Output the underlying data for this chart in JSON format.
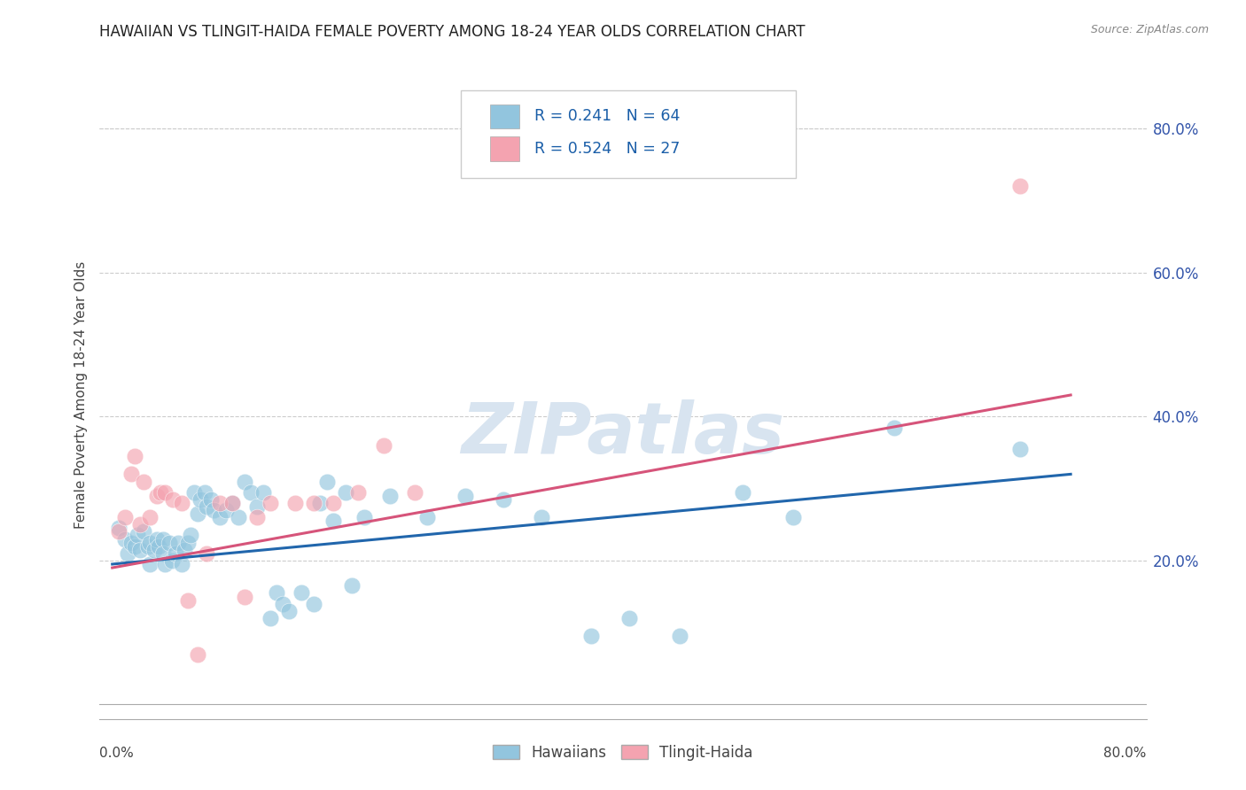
{
  "title": "HAWAIIAN VS TLINGIT-HAIDA FEMALE POVERTY AMONG 18-24 YEAR OLDS CORRELATION CHART",
  "source": "Source: ZipAtlas.com",
  "ylabel": "Female Poverty Among 18-24 Year Olds",
  "ytick_labels": [
    "20.0%",
    "40.0%",
    "60.0%",
    "80.0%"
  ],
  "ytick_values": [
    0.2,
    0.4,
    0.6,
    0.8
  ],
  "xlim": [
    -0.01,
    0.82
  ],
  "ylim": [
    -0.02,
    0.88
  ],
  "hawaiian_R": "0.241",
  "hawaiian_N": "64",
  "tlingit_R": "0.524",
  "tlingit_N": "27",
  "blue_color": "#92c5de",
  "pink_color": "#f4a3b0",
  "blue_line_color": "#2166ac",
  "pink_line_color": "#d6547a",
  "watermark": "ZIPatlas",
  "watermark_color": "#d8e4f0",
  "background_color": "#ffffff",
  "grid_color": "#cccccc",
  "hawaiian_x": [
    0.005,
    0.01,
    0.012,
    0.015,
    0.018,
    0.02,
    0.022,
    0.025,
    0.028,
    0.03,
    0.03,
    0.033,
    0.035,
    0.037,
    0.04,
    0.04,
    0.042,
    0.045,
    0.047,
    0.05,
    0.052,
    0.055,
    0.057,
    0.06,
    0.062,
    0.065,
    0.068,
    0.07,
    0.073,
    0.075,
    0.078,
    0.08,
    0.085,
    0.09,
    0.095,
    0.1,
    0.105,
    0.11,
    0.115,
    0.12,
    0.125,
    0.13,
    0.135,
    0.14,
    0.15,
    0.16,
    0.165,
    0.17,
    0.175,
    0.185,
    0.19,
    0.2,
    0.22,
    0.25,
    0.28,
    0.31,
    0.34,
    0.38,
    0.41,
    0.45,
    0.5,
    0.54,
    0.62,
    0.72
  ],
  "hawaiian_y": [
    0.245,
    0.23,
    0.21,
    0.225,
    0.22,
    0.235,
    0.215,
    0.24,
    0.22,
    0.225,
    0.195,
    0.215,
    0.23,
    0.22,
    0.23,
    0.21,
    0.195,
    0.225,
    0.2,
    0.21,
    0.225,
    0.195,
    0.215,
    0.225,
    0.235,
    0.295,
    0.265,
    0.285,
    0.295,
    0.275,
    0.285,
    0.27,
    0.26,
    0.27,
    0.28,
    0.26,
    0.31,
    0.295,
    0.275,
    0.295,
    0.12,
    0.155,
    0.14,
    0.13,
    0.155,
    0.14,
    0.28,
    0.31,
    0.255,
    0.295,
    0.165,
    0.26,
    0.29,
    0.26,
    0.29,
    0.285,
    0.26,
    0.095,
    0.12,
    0.095,
    0.295,
    0.26,
    0.385,
    0.355
  ],
  "tlingit_x": [
    0.005,
    0.01,
    0.015,
    0.018,
    0.022,
    0.025,
    0.03,
    0.035,
    0.038,
    0.042,
    0.048,
    0.055,
    0.06,
    0.068,
    0.075,
    0.085,
    0.095,
    0.105,
    0.115,
    0.125,
    0.145,
    0.16,
    0.175,
    0.195,
    0.215,
    0.24,
    0.72
  ],
  "tlingit_y": [
    0.24,
    0.26,
    0.32,
    0.345,
    0.25,
    0.31,
    0.26,
    0.29,
    0.295,
    0.295,
    0.285,
    0.28,
    0.145,
    0.07,
    0.21,
    0.28,
    0.28,
    0.15,
    0.26,
    0.28,
    0.28,
    0.28,
    0.28,
    0.295,
    0.36,
    0.295,
    0.72
  ],
  "hawaiian_trend_x": [
    0.0,
    0.76
  ],
  "hawaiian_trend_y": [
    0.195,
    0.32
  ],
  "tlingit_trend_x": [
    0.0,
    0.76
  ],
  "tlingit_trend_y": [
    0.19,
    0.43
  ]
}
